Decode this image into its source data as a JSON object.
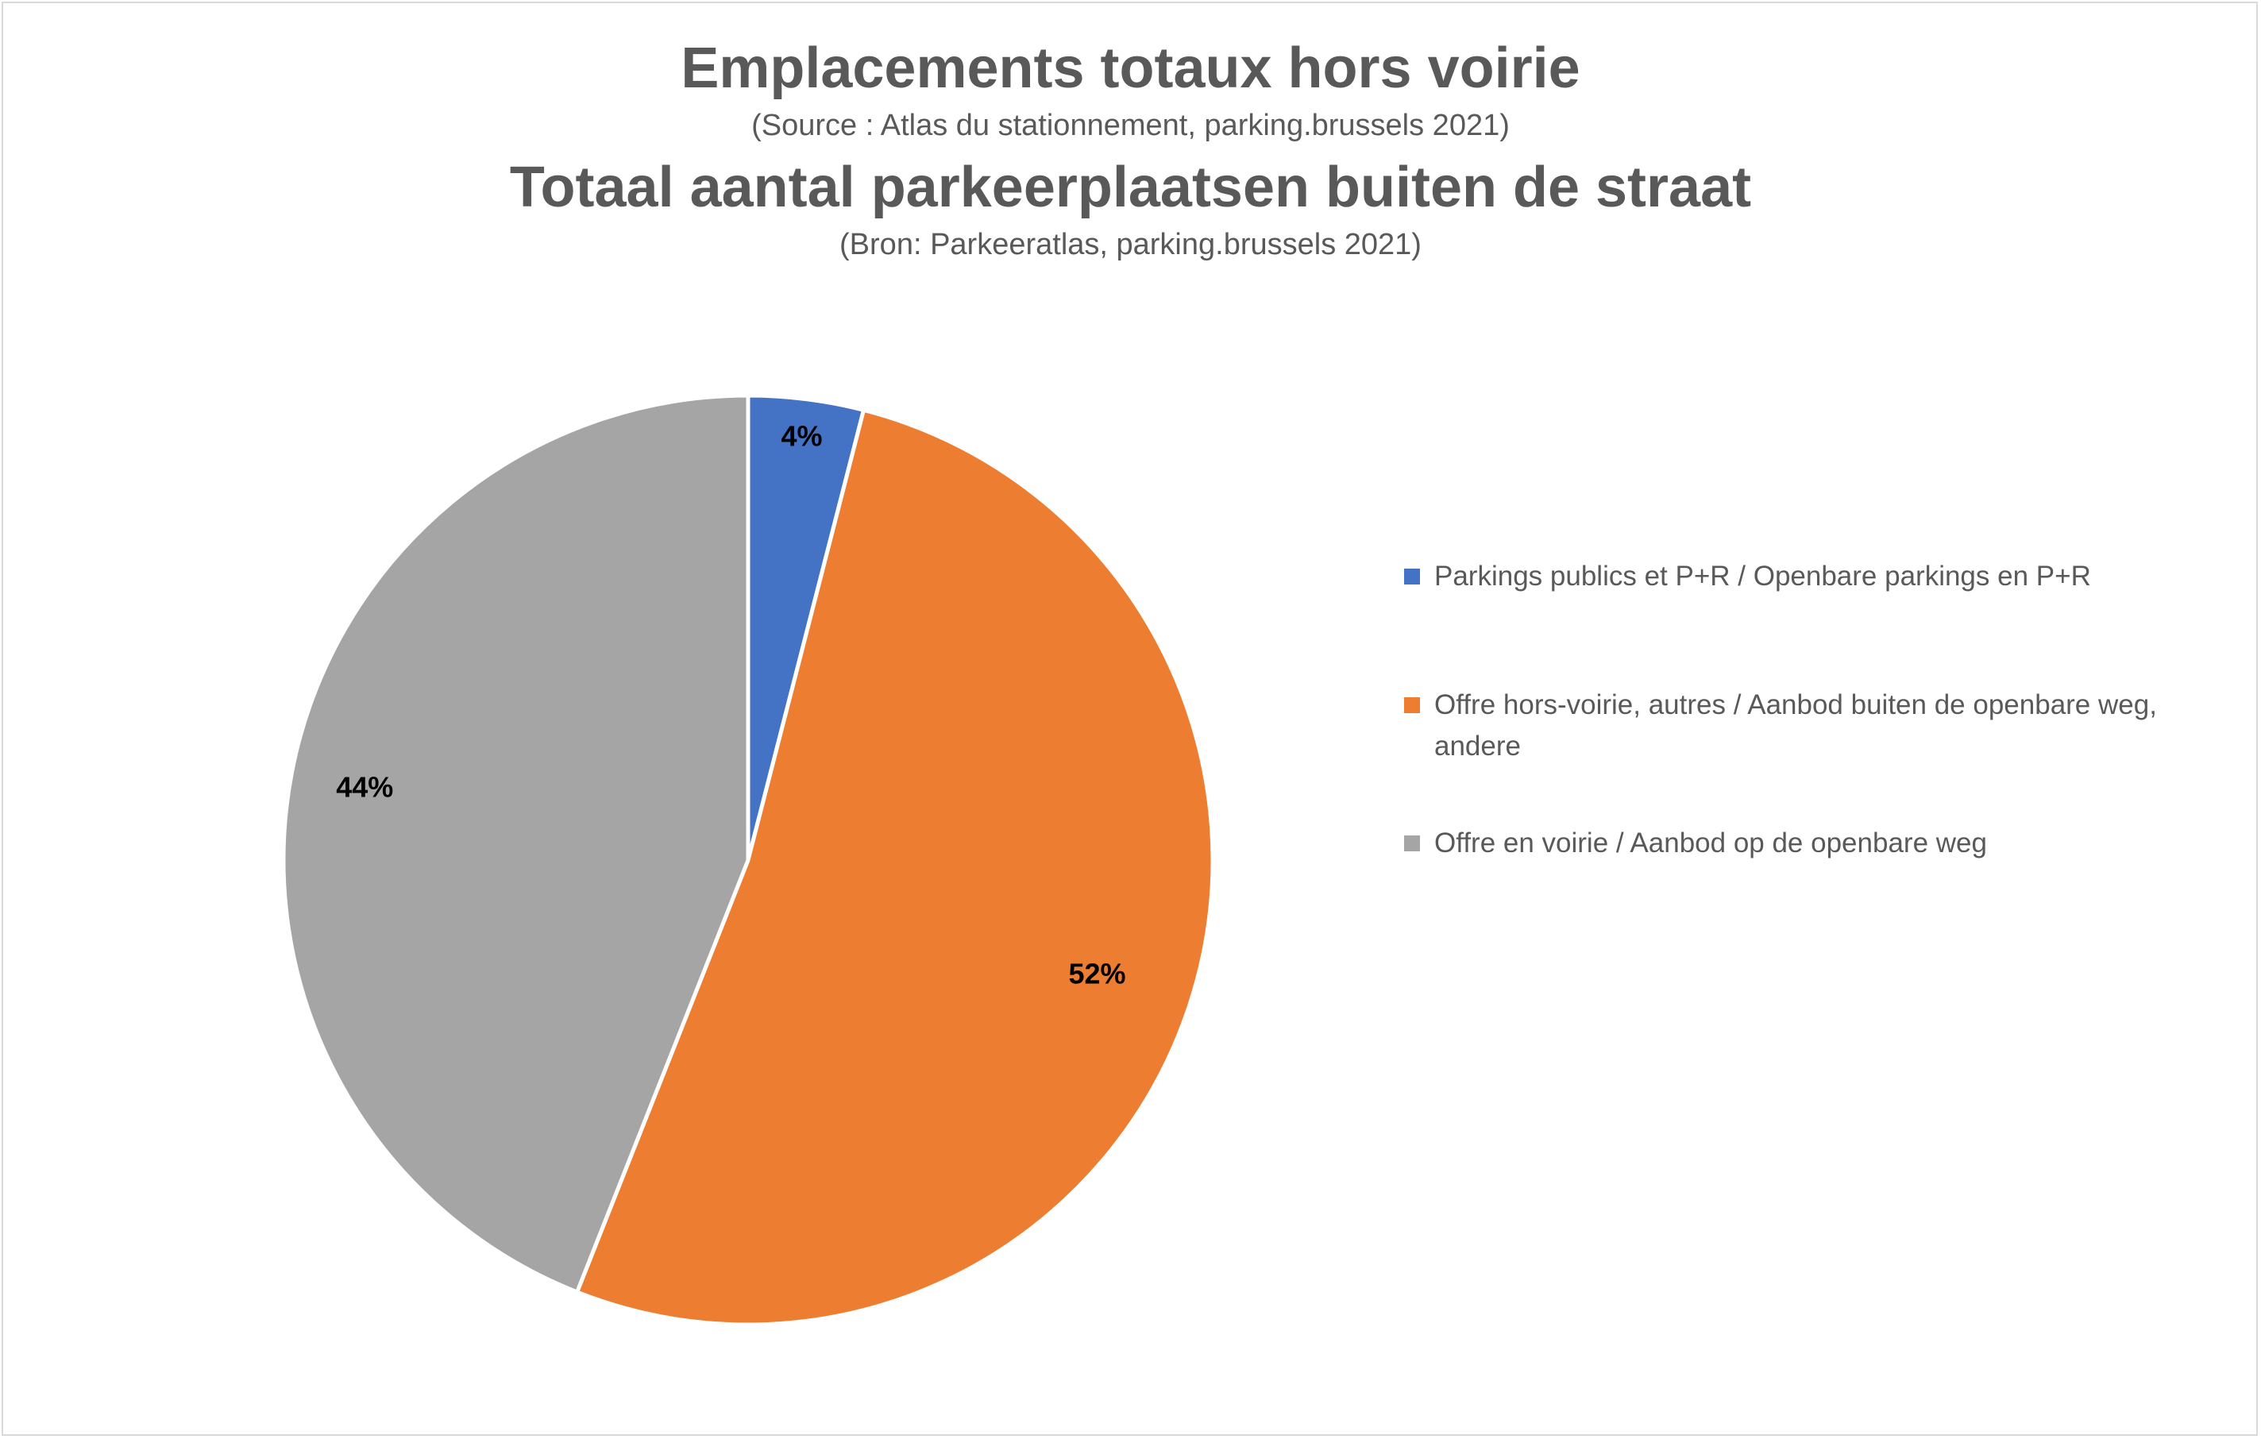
{
  "chart_data": {
    "type": "pie",
    "title": "Emplacements totaux hors voirie",
    "subtitle": "(Source : Atlas du stationnement, parking.brussels 2021)",
    "title2": "Totaal aantal parkeerplaatsen buiten de straat",
    "subtitle2": "(Bron: Parkeeratlas, parking.brussels 2021)",
    "slices": [
      {
        "label": "Parkings publics et P+R / Openbare parkings en P+R",
        "value": 4,
        "data_label": "4%",
        "color": "#4472C4"
      },
      {
        "label": "Offre hors-voirie, autres / Aanbod buiten de openbare weg, andere",
        "value": 52,
        "data_label": "52%",
        "color": "#ED7D31"
      },
      {
        "label": "Offre en voirie / Aanbod op de openbare weg",
        "value": 44,
        "data_label": "44%",
        "color": "#A5A5A5"
      }
    ],
    "legend_position": "right"
  }
}
